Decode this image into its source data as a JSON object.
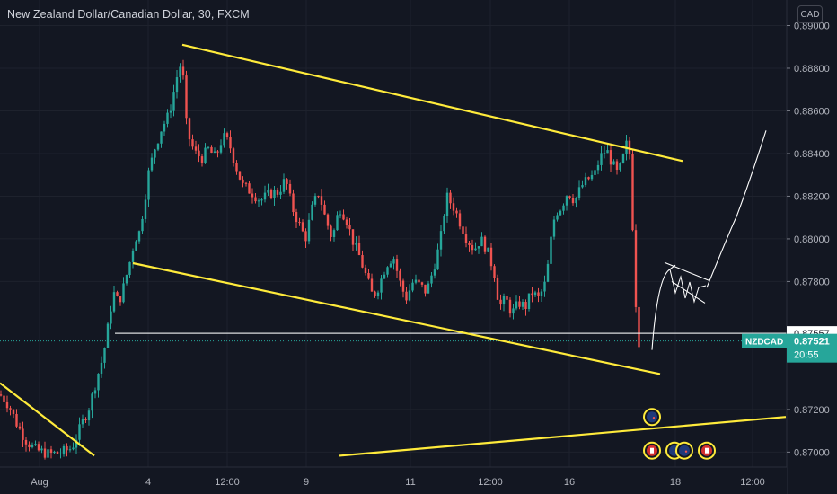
{
  "header": {
    "title": "New Zealand Dollar/Canadian Dollar, 30, FXCM",
    "currency": "CAD"
  },
  "chart_data": {
    "type": "candlestick",
    "symbol": "NZDCAD",
    "interval": "30",
    "source": "FXCM",
    "ylim": [
      0.8693,
      0.8912
    ],
    "y_ticks": [
      "0.89000",
      "0.88800",
      "0.88600",
      "0.88400",
      "0.88200",
      "0.88000",
      "0.87800",
      "0.87200",
      "0.87000"
    ],
    "x_ticks": [
      "Aug",
      "4",
      "12:00",
      "9",
      "11",
      "12:00",
      "16",
      "18",
      "12:00"
    ],
    "current_price": {
      "symbol": "NZDCAD",
      "value": "0.87521",
      "countdown": "20:55",
      "color": "#26a69a"
    },
    "horizontal_level": {
      "label": "0.87557",
      "value": 0.87557,
      "color": "#ffffff"
    },
    "price_path": [
      [
        0,
        0.8727
      ],
      [
        10,
        0.8722
      ],
      [
        20,
        0.8712
      ],
      [
        30,
        0.8705
      ],
      [
        40,
        0.8701
      ],
      [
        55,
        0.8699
      ],
      [
        70,
        0.87
      ],
      [
        80,
        0.8702
      ],
      [
        90,
        0.8712
      ],
      [
        100,
        0.8722
      ],
      [
        108,
        0.8735
      ],
      [
        115,
        0.8745
      ],
      [
        120,
        0.8758
      ],
      [
        126,
        0.8775
      ],
      [
        132,
        0.877
      ],
      [
        138,
        0.8778
      ],
      [
        145,
        0.879
      ],
      [
        150,
        0.88
      ],
      [
        155,
        0.8803
      ],
      [
        160,
        0.8815
      ],
      [
        165,
        0.883
      ],
      [
        172,
        0.8842
      ],
      [
        180,
        0.8852
      ],
      [
        188,
        0.8858
      ],
      [
        194,
        0.887
      ],
      [
        200,
        0.8882
      ],
      [
        204,
        0.8875
      ],
      [
        207,
        0.8855
      ],
      [
        212,
        0.8845
      ],
      [
        218,
        0.884
      ],
      [
        225,
        0.8838
      ],
      [
        232,
        0.8842
      ],
      [
        240,
        0.8838
      ],
      [
        248,
        0.8848
      ],
      [
        255,
        0.8845
      ],
      [
        262,
        0.8835
      ],
      [
        270,
        0.8825
      ],
      [
        280,
        0.8822
      ],
      [
        290,
        0.8818
      ],
      [
        300,
        0.8821
      ],
      [
        310,
        0.8822
      ],
      [
        318,
        0.8828
      ],
      [
        325,
        0.8815
      ],
      [
        332,
        0.8808
      ],
      [
        340,
        0.88
      ],
      [
        348,
        0.8815
      ],
      [
        355,
        0.8822
      ],
      [
        362,
        0.881
      ],
      [
        370,
        0.88
      ],
      [
        378,
        0.8815
      ],
      [
        385,
        0.881
      ],
      [
        392,
        0.88
      ],
      [
        400,
        0.8792
      ],
      [
        408,
        0.8782
      ],
      [
        415,
        0.8773
      ],
      [
        422,
        0.8778
      ],
      [
        430,
        0.8788
      ],
      [
        438,
        0.8792
      ],
      [
        445,
        0.878
      ],
      [
        452,
        0.8772
      ],
      [
        460,
        0.878
      ],
      [
        468,
        0.8778
      ],
      [
        475,
        0.8775
      ],
      [
        482,
        0.8785
      ],
      [
        490,
        0.8798
      ],
      [
        497,
        0.882
      ],
      [
        505,
        0.8815
      ],
      [
        512,
        0.8808
      ],
      [
        520,
        0.88
      ],
      [
        528,
        0.8795
      ],
      [
        535,
        0.88
      ],
      [
        542,
        0.8795
      ],
      [
        550,
        0.8785
      ],
      [
        556,
        0.8768
      ],
      [
        563,
        0.8772
      ],
      [
        570,
        0.8765
      ],
      [
        578,
        0.877
      ],
      [
        585,
        0.8768
      ],
      [
        592,
        0.8775
      ],
      [
        600,
        0.8772
      ],
      [
        608,
        0.878
      ],
      [
        613,
        0.8798
      ],
      [
        618,
        0.8812
      ],
      [
        625,
        0.8815
      ],
      [
        632,
        0.8822
      ],
      [
        640,
        0.8818
      ],
      [
        648,
        0.8825
      ],
      [
        655,
        0.8828
      ],
      [
        662,
        0.883
      ],
      [
        668,
        0.8838
      ],
      [
        675,
        0.8842
      ],
      [
        682,
        0.8835
      ],
      [
        688,
        0.883
      ],
      [
        694,
        0.8838
      ],
      [
        698,
        0.8845
      ],
      [
        702,
        0.8838
      ],
      [
        705,
        0.88
      ],
      [
        708,
        0.877
      ],
      [
        711,
        0.8752
      ],
      [
        714,
        0.8752
      ]
    ],
    "trendlines": [
      {
        "name": "upper-channel",
        "color": "#ffeb3b",
        "points": [
          [
            203,
            0.8891
          ],
          [
            760,
            0.88365
          ]
        ]
      },
      {
        "name": "lower-channel",
        "color": "#ffeb3b",
        "points": [
          [
            148,
            0.87886
          ],
          [
            735,
            0.87366
          ]
        ]
      },
      {
        "name": "left-descending",
        "color": "#ffeb3b",
        "points": [
          [
            0,
            0.87324
          ],
          [
            105,
            0.86983
          ]
        ]
      },
      {
        "name": "long-ascending",
        "color": "#ffeb3b",
        "points": [
          [
            378,
            0.86983
          ],
          [
            875,
            0.87165
          ]
        ]
      }
    ],
    "projection_path": [
      [
        726,
        0.87479
      ],
      [
        745,
        0.87854
      ],
      [
        752,
        0.87877
      ],
      [
        820,
        0.88103
      ],
      [
        853,
        0.88508
      ]
    ],
    "pennant": [
      [
        740,
        0.87889
      ],
      [
        790,
        0.87804
      ],
      [
        748,
        0.878
      ],
      [
        770,
        0.87747
      ]
    ],
    "events": [
      {
        "name": "event-1",
        "x": 726,
        "y": 0.87165,
        "flag": "NZ"
      },
      {
        "name": "event-2",
        "x": 726,
        "y": 0.87007,
        "flag": "CA"
      },
      {
        "name": "event-3",
        "x": 751,
        "y": 0.87007,
        "flag": "NZ"
      },
      {
        "name": "event-4",
        "x": 762,
        "y": 0.87007,
        "flag": "NZ"
      },
      {
        "name": "event-5",
        "x": 787,
        "y": 0.87007,
        "flag": "CA"
      }
    ]
  },
  "colors": {
    "background": "#131722",
    "grid": "#1e222d",
    "up": "#26a69a",
    "down": "#ef5350",
    "trendline": "#ffeb3b"
  }
}
